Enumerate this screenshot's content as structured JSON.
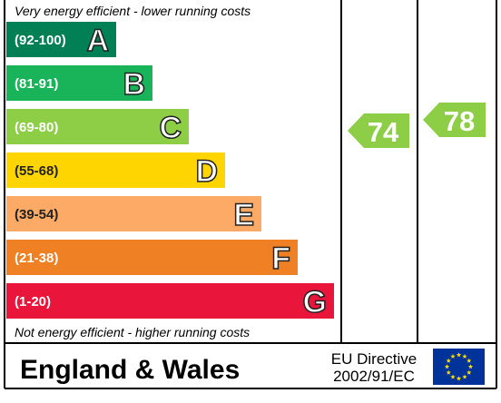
{
  "top_note": "Very energy efficient - lower running costs",
  "bottom_note": "Not energy efficient - higher running costs",
  "bands": [
    {
      "range": "(92-100)",
      "letter": "A",
      "color": "#008054"
    },
    {
      "range": "(81-91)",
      "letter": "B",
      "color": "#19b459"
    },
    {
      "range": "(69-80)",
      "letter": "C",
      "color": "#8dce46"
    },
    {
      "range": "(55-68)",
      "letter": "D",
      "color": "#ffd500"
    },
    {
      "range": "(39-54)",
      "letter": "E",
      "color": "#fcaa65"
    },
    {
      "range": "(21-38)",
      "letter": "F",
      "color": "#ef8023"
    },
    {
      "range": "(1-20)",
      "letter": "G",
      "color": "#e9153b"
    }
  ],
  "current": {
    "value": "74",
    "color": "#8dce46"
  },
  "potential": {
    "value": "78",
    "color": "#8dce46"
  },
  "footer": {
    "region": "England & Wales",
    "directive_line1": "EU Directive",
    "directive_line2": "2002/91/EC"
  }
}
